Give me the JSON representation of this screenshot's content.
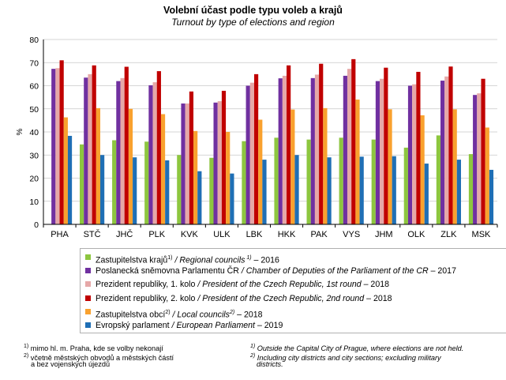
{
  "header": {
    "title": "Volební účast podle typu voleb a krajů",
    "subtitle": "Turnout  by type of elections and region"
  },
  "chart_data": {
    "type": "bar",
    "ylabel": "%",
    "ylim": [
      0,
      80
    ],
    "yticks": [
      0,
      10,
      20,
      30,
      40,
      50,
      60,
      70,
      80
    ],
    "grid": true,
    "categories": [
      "PHA",
      "STČ",
      "JHČ",
      "PLK",
      "KVK",
      "ULK",
      "LBK",
      "HKK",
      "PAK",
      "VYS",
      "JHM",
      "OLK",
      "ZLK",
      "MSK"
    ],
    "series": [
      {
        "name": "Zastupitelstva krajů 1) / Regional councils 1) – 2016",
        "color": "#8dc63f",
        "values": [
          null,
          34.6,
          36.4,
          35.8,
          30.0,
          28.8,
          36.0,
          37.5,
          36.7,
          37.5,
          36.7,
          33.2,
          38.5,
          30.4
        ]
      },
      {
        "name": "Poslanecká sněmovna Parlamentu ČR / Chamber of Deputies of the Parliament of the CR – 2017",
        "color": "#7030a0",
        "values": [
          67.3,
          63.5,
          62.0,
          60.2,
          52.3,
          52.7,
          60.0,
          63.2,
          63.3,
          64.3,
          62.0,
          60.0,
          62.2,
          56.0
        ]
      },
      {
        "name": "Prezident republiky, 1. kolo / President of the Czech Republic, 1st round – 2018",
        "color": "#e6a8a8",
        "values": [
          67.6,
          65.0,
          63.3,
          61.5,
          52.3,
          53.3,
          61.3,
          64.3,
          64.8,
          67.3,
          63.0,
          60.6,
          64.0,
          56.7
        ]
      },
      {
        "name": "Prezident republiky, 2. kolo / President of the Czech Republic, 2nd round – 2018",
        "color": "#c00000",
        "values": [
          71.0,
          68.8,
          68.2,
          66.3,
          57.5,
          57.8,
          65.0,
          68.8,
          69.5,
          71.5,
          67.8,
          66.0,
          68.3,
          63.0
        ]
      },
      {
        "name": "Zastupitelstva obcí 2) / Local councils 2) – 2018",
        "color": "#f9a12e",
        "values": [
          46.3,
          50.3,
          50.0,
          47.7,
          40.4,
          40.0,
          45.3,
          49.7,
          50.3,
          54.0,
          49.8,
          47.2,
          49.8,
          41.9
        ]
      },
      {
        "name": "Evropský parlament / European Parliament – 2019",
        "color": "#1f6fb5",
        "values": [
          38.3,
          30.0,
          29.0,
          27.7,
          23.0,
          22.0,
          28.0,
          30.0,
          29.0,
          29.3,
          29.5,
          26.3,
          28.0,
          23.6
        ]
      }
    ]
  },
  "legend": {
    "items": [
      {
        "main": "Zastupitelstva krajů",
        "sup": "1)",
        "sep": " / ",
        "en": "Regional councils",
        "en_sup": " 1)",
        "tail": " – 2016"
      },
      {
        "main": "Poslanecká sněmovna Parlamentu  ČR",
        "sup": "",
        "sep": " / ",
        "en": "Chamber of Deputies of the Parliament of the CR",
        "en_sup": "",
        "tail": " – 2017"
      },
      {
        "main": "Prezident republiky, 1. kolo",
        "sup": "",
        "sep": "  / ",
        "en": "President of the Czech Republic, 1st round",
        "en_sup": "",
        "tail": " – 2018"
      },
      {
        "main": "Prezident republiky, 2. kolo",
        "sup": "",
        "sep": "  / ",
        "en": "President of the Czech Republic, 2nd round",
        "en_sup": "",
        "tail": " – 2018"
      },
      {
        "main": "Zastupitelstva obcí",
        "sup": "2)",
        "sep": " / ",
        "en": "Local councils",
        "en_sup": "2)",
        "tail": " – 2018"
      },
      {
        "main": "Evropský parlament",
        "sup": "",
        "sep": " / ",
        "en": "European Parliament",
        "en_sup": "",
        "tail": " – 2019"
      }
    ]
  },
  "notes": {
    "cz1_mark": "1)",
    "cz1": " mimo  hl. m. Praha,  kde se volby nekonají",
    "cz2_mark": "2)",
    "cz2a": " včetně městských obvodů a městských částí",
    "cz2b": "a bez vojenských újezdů",
    "en1_mark": "1)",
    "en1": " Outside the Capital City of Prague, where elections are not held.",
    "en2_mark": "2)",
    "en2a": " Including city districts and city sections; excluding military",
    "en2b": "districts."
  }
}
